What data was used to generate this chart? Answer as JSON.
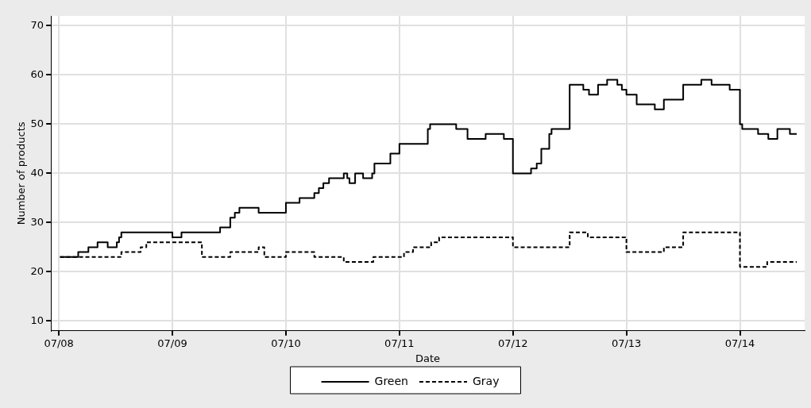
{
  "chart_data": {
    "type": "step",
    "xlabel": "Date",
    "ylabel": "Number of products",
    "xlim": [
      "--07-07T22:19",
      "--07-14T13:41"
    ],
    "xticks": [
      {
        "value": "--07-08",
        "label": "07/08"
      },
      {
        "value": "--07-09",
        "label": "07/09"
      },
      {
        "value": "--07-10",
        "label": "07/10"
      },
      {
        "value": "--07-11",
        "label": "07/11"
      },
      {
        "value": "--07-12",
        "label": "07/12"
      },
      {
        "value": "--07-13",
        "label": "07/13"
      },
      {
        "value": "--07-14",
        "label": "07/14"
      }
    ],
    "ylim": [
      8,
      72
    ],
    "yticks": [
      10,
      20,
      30,
      40,
      50,
      60,
      70
    ],
    "grid": true,
    "legend": "bottom",
    "marker": "none",
    "series": [
      {
        "name": "Green",
        "color": "#000000",
        "line_style": "solid",
        "x": [
          "--07-08T00:14",
          "--07-08T04:05",
          "--07-08T06:14",
          "--07-08T08:10",
          "--07-08T10:19",
          "--07-08T12:14",
          "--07-08T12:43",
          "--07-08T13:12",
          "--07-09T00:00",
          "--07-09T01:55",
          "--07-09T10:05",
          "--07-09T12:14",
          "--07-09T13:12",
          "--07-09T14:10",
          "--07-09T18:14",
          "--07-10T00:00",
          "--07-10T00:43",
          "--07-10T02:53",
          "--07-10T06:00",
          "--07-10T06:58",
          "--07-10T07:55",
          "--07-10T09:07",
          "--07-10T12:14",
          "--07-10T12:58",
          "--07-10T13:26",
          "--07-10T14:38",
          "--07-10T16:19",
          "--07-10T18:14",
          "--07-10T18:43",
          "--07-10T19:26",
          "--07-10T22:05",
          "--07-11T00:00",
          "--07-11T06:00",
          "--07-11T06:29",
          "--07-11T12:00",
          "--07-11T14:24",
          "--07-11T18:14",
          "--07-11T22:05",
          "--07-12T00:00",
          "--07-12T03:50",
          "--07-12T05:02",
          "--07-12T06:00",
          "--07-12T07:41",
          "--07-12T08:10",
          "--07-12T12:00",
          "--07-12T14:53",
          "--07-12T16:05",
          "--07-12T18:00",
          "--07-12T19:55",
          "--07-12T22:05",
          "--07-12T23:02",
          "--07-13T00:00",
          "--07-13T02:10",
          "--07-13T06:00",
          "--07-13T07:55",
          "--07-13T12:00",
          "--07-13T15:50",
          "--07-13T18:00",
          "--07-13T21:50",
          "--07-14T00:00",
          "--07-14T00:29",
          "--07-14T03:50",
          "--07-14T06:00",
          "--07-14T07:55",
          "--07-14T10:34",
          "--07-14T12:00"
        ],
        "values": [
          23,
          24,
          25,
          26,
          25,
          26,
          27,
          28,
          27,
          28,
          29,
          31,
          32,
          33,
          32,
          34,
          34,
          35,
          36,
          37,
          38,
          39,
          40,
          39,
          38,
          40,
          39,
          40,
          42,
          42,
          44,
          46,
          49,
          50,
          49,
          47,
          48,
          47,
          40,
          41,
          42,
          45,
          48,
          49,
          58,
          57,
          56,
          58,
          59,
          58,
          57,
          56,
          54,
          53,
          55,
          58,
          59,
          58,
          57,
          50,
          49,
          48,
          47,
          49,
          48,
          48
        ]
      },
      {
        "name": "Gray",
        "color": "#000000",
        "line_style": "dashed",
        "x": [
          "--07-08T00:14",
          "--07-08T13:12",
          "--07-08T17:17",
          "--07-08T18:29",
          "--07-09T00:00",
          "--07-09T06:14",
          "--07-09T12:14",
          "--07-09T18:14",
          "--07-09T19:26",
          "--07-10T00:00",
          "--07-10T06:00",
          "--07-10T12:14",
          "--07-10T18:29",
          "--07-11T00:58",
          "--07-11T02:53",
          "--07-11T06:43",
          "--07-11T08:24",
          "--07-12T00:00",
          "--07-12T12:00",
          "--07-12T15:50",
          "--07-13T00:00",
          "--07-13T07:55",
          "--07-13T12:00",
          "--07-14T00:00",
          "--07-14T05:46",
          "--07-14T12:00"
        ],
        "values": [
          23,
          24,
          25,
          26,
          26,
          23,
          24,
          25,
          23,
          24,
          23,
          22,
          23,
          24,
          25,
          26,
          27,
          25,
          28,
          27,
          24,
          25,
          28,
          21,
          22,
          22
        ]
      }
    ]
  }
}
